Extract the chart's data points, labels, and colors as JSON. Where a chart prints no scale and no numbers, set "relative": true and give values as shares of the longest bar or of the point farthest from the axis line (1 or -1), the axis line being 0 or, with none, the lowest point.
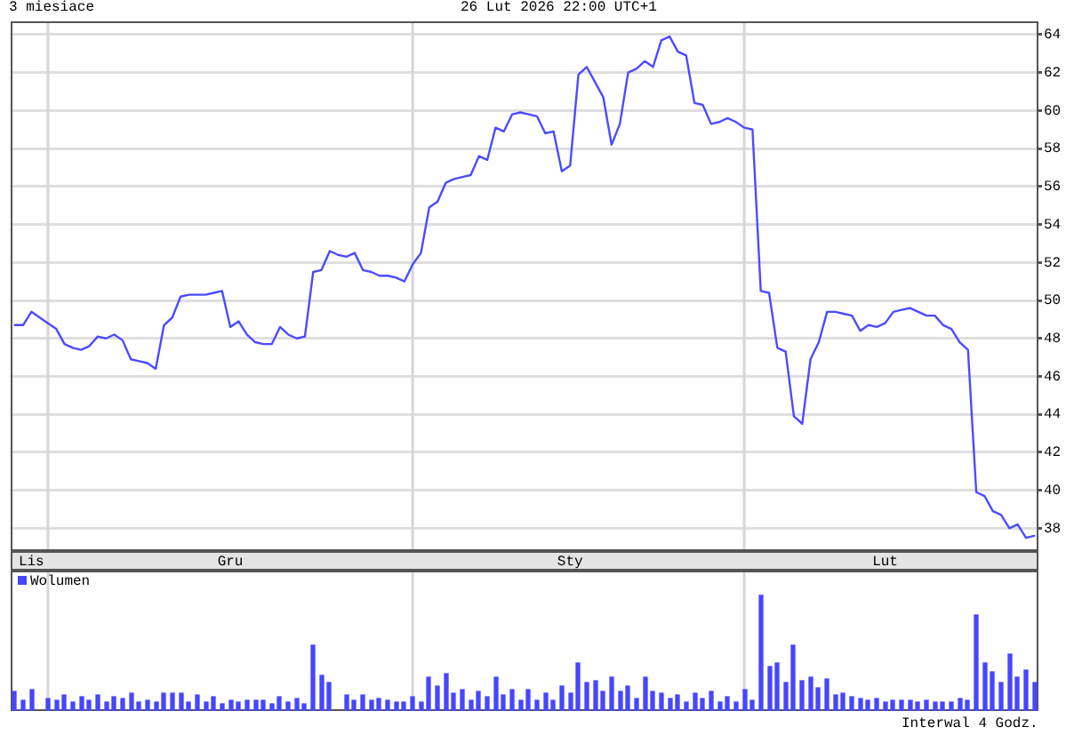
{
  "chart_data": [
    {
      "type": "line",
      "title": "3 miesiace",
      "subtitle": "26 Lut 2026 22:00 UTC+1",
      "categories": [
        null,
        null,
        "Lis",
        null,
        null,
        null,
        null,
        null,
        null,
        null,
        null,
        null,
        null,
        null,
        null,
        null,
        null,
        null,
        null,
        null,
        null,
        null,
        null,
        null,
        null,
        null,
        "Gru",
        null,
        null,
        null,
        null,
        null,
        null,
        null,
        null,
        null,
        null,
        null,
        null,
        null,
        null,
        null,
        null,
        null,
        null,
        null,
        null,
        null,
        null,
        null,
        null,
        null,
        null,
        null,
        null,
        null,
        null,
        null,
        null,
        null,
        null,
        null,
        null,
        null,
        null,
        null,
        null,
        "Sty",
        null,
        null,
        null,
        null,
        null,
        null,
        null,
        null,
        null,
        null,
        null,
        null,
        null,
        null,
        null,
        null,
        null,
        null,
        null,
        null,
        null,
        null,
        null,
        null,
        null,
        null,
        null,
        null,
        null,
        null,
        null,
        null,
        null,
        null,
        null,
        null,
        null,
        "Lut",
        null,
        null,
        null,
        null,
        null,
        null,
        null,
        null,
        null,
        null,
        null,
        null,
        null,
        null,
        null,
        null,
        null,
        null
      ],
      "values": [
        48.7,
        48.7,
        49.4,
        49.1,
        48.8,
        48.5,
        47.7,
        47.5,
        47.4,
        47.6,
        48.1,
        48.0,
        48.2,
        47.9,
        46.9,
        46.8,
        46.7,
        46.4,
        48.7,
        49.1,
        50.2,
        50.3,
        50.3,
        50.3,
        50.4,
        50.5,
        48.6,
        48.9,
        48.2,
        47.8,
        47.7,
        47.7,
        48.6,
        48.2,
        48.0,
        48.1,
        51.5,
        51.6,
        52.6,
        52.4,
        52.3,
        52.5,
        51.6,
        51.5,
        51.3,
        51.3,
        51.2,
        51.0,
        51.9,
        52.5,
        54.9,
        55.2,
        56.2,
        56.4,
        56.5,
        56.6,
        57.6,
        57.4,
        59.1,
        58.9,
        59.8,
        59.9,
        59.8,
        59.7,
        58.8,
        58.9,
        56.8,
        57.1,
        61.9,
        62.3,
        61.5,
        60.7,
        58.2,
        59.3,
        62.0,
        62.2,
        62.6,
        62.3,
        63.7,
        63.9,
        63.1,
        62.9,
        60.4,
        60.3,
        59.3,
        59.4,
        59.6,
        59.4,
        59.1,
        59.0,
        50.5,
        50.4,
        47.5,
        47.3,
        43.9,
        43.5,
        46.9,
        47.8,
        49.4,
        49.4,
        49.3,
        49.2,
        48.4,
        48.7,
        48.6,
        48.8,
        49.4,
        49.5,
        49.6,
        49.4,
        49.2,
        49.2,
        48.7,
        48.5,
        47.8,
        47.4,
        39.9,
        39.7,
        38.9,
        38.7,
        38.0,
        38.2,
        37.5,
        37.6
      ],
      "color": "#4b4bff",
      "ylim": [
        36.8,
        64.7
      ],
      "yticks": [
        38,
        40,
        42,
        44,
        46,
        48,
        50,
        52,
        54,
        56,
        58,
        60,
        62,
        64
      ],
      "grid": "y"
    },
    {
      "type": "bar",
      "categories": [
        null,
        null,
        null,
        null,
        null,
        null,
        null,
        null,
        null,
        null,
        null,
        null,
        null,
        null,
        null,
        null,
        null,
        null,
        null,
        null,
        null,
        null,
        null,
        null,
        null,
        null,
        null,
        null,
        null,
        null,
        null,
        null,
        null,
        null,
        null,
        null,
        null,
        null,
        null,
        null,
        null,
        null,
        null,
        null,
        null,
        null,
        null,
        null,
        null,
        null,
        null,
        null,
        null,
        null,
        null,
        null,
        null,
        null,
        null,
        null,
        null,
        null,
        null,
        null,
        null,
        null,
        null,
        null,
        null,
        null,
        null,
        null,
        null,
        null,
        null,
        null,
        null,
        null,
        null,
        null,
        null,
        null,
        null,
        null,
        null,
        null,
        null,
        null,
        null,
        null,
        null,
        null,
        null,
        null,
        null,
        null,
        null,
        null,
        null,
        null,
        null,
        null,
        null,
        null,
        null,
        null,
        null,
        null,
        null,
        null,
        null,
        null,
        null,
        null,
        null,
        null,
        null,
        null,
        null,
        null,
        null,
        null,
        null,
        null
      ],
      "series": [
        {
          "name": "Wolumen",
          "color": "#4646ff",
          "values": [
            0.17,
            0.1,
            0.19,
            null,
            0.11,
            0.09,
            0.14,
            0.07,
            0.12,
            0.09,
            0.14,
            0.08,
            0.12,
            0.11,
            0.15,
            0.08,
            0.1,
            0.07,
            0.15,
            0.15,
            0.15,
            0.08,
            0.14,
            0.08,
            0.12,
            0.06,
            0.1,
            0.07,
            0.09,
            0.09,
            0.09,
            0.06,
            0.12,
            0.08,
            0.11,
            0.06,
            0.57,
            0.31,
            0.24,
            null,
            0.14,
            0.09,
            0.14,
            0.09,
            0.11,
            0.09,
            0.08,
            0.08,
            0.12,
            0.08,
            0.29,
            0.21,
            0.33,
            0.15,
            0.19,
            0.1,
            0.17,
            0.12,
            0.29,
            0.14,
            0.19,
            0.1,
            0.18,
            0.09,
            0.16,
            0.1,
            0.22,
            0.16,
            0.41,
            0.24,
            0.26,
            0.17,
            0.29,
            0.17,
            0.21,
            0.11,
            0.29,
            0.17,
            0.15,
            0.11,
            0.14,
            0.08,
            0.16,
            0.11,
            0.17,
            0.07,
            0.12,
            0.07,
            0.19,
            0.09,
            1,
            0.38,
            0.41,
            0.25,
            0.57,
            0.27,
            0.29,
            0.2,
            0.28,
            0.14,
            0.16,
            0.12,
            0.11,
            0.09,
            0.11,
            0.08,
            0.09,
            0.09,
            0.1,
            0.07,
            0.1,
            0.07,
            0.08,
            0.07,
            0.11,
            0.09,
            0.84,
            0.41,
            0.34,
            0.25,
            0.5,
            0.29,
            0.35,
            0.24
          ]
        }
      ],
      "relative": true,
      "legend": "top left",
      "tick_labels": false,
      "annotations": [
        "Interwal 4 Godz."
      ]
    }
  ]
}
